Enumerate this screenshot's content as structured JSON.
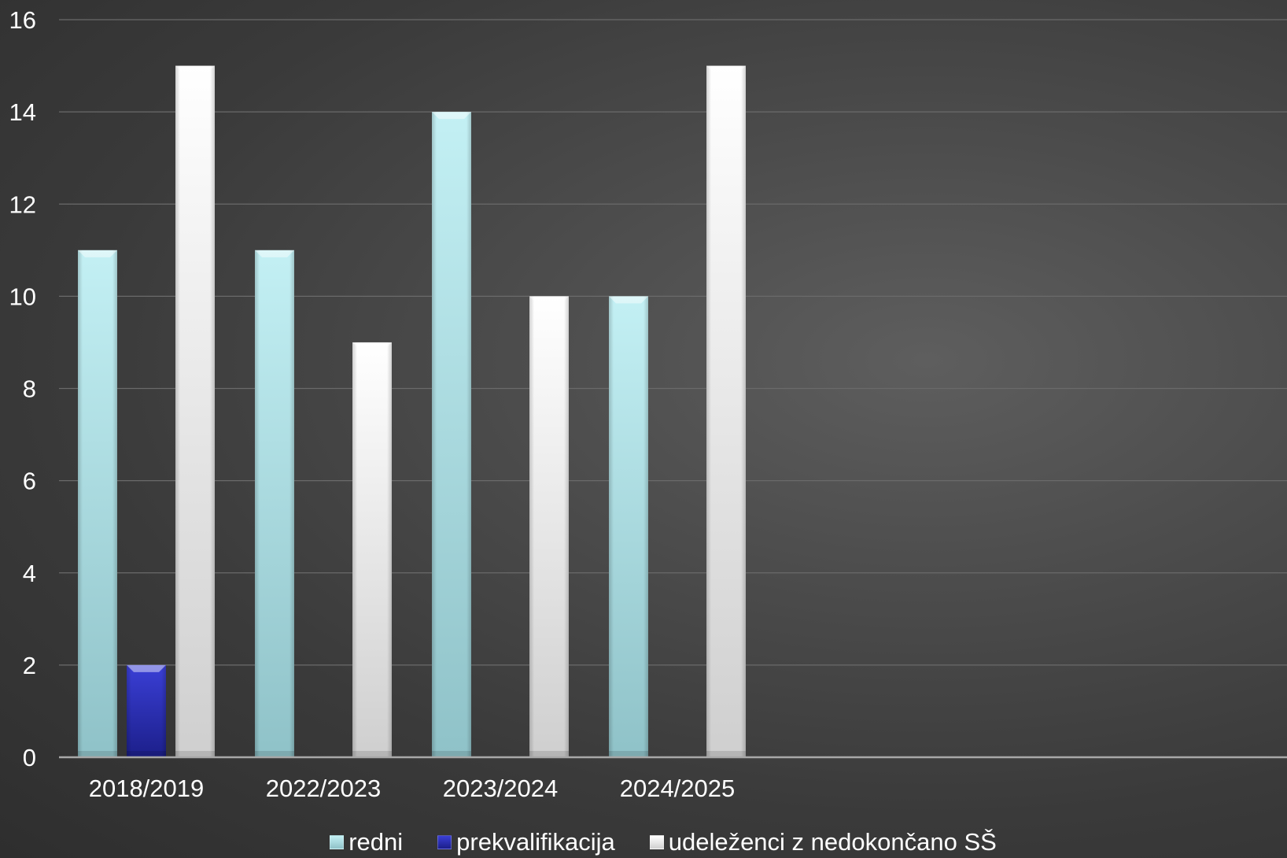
{
  "chart_data": {
    "type": "bar",
    "categories": [
      "2018/2019",
      "2022/2023",
      "2023/2024",
      "2024/2025"
    ],
    "series": [
      {
        "name": "redni",
        "values": [
          11,
          11,
          14,
          10
        ],
        "color": "#aee4ea"
      },
      {
        "name": "prekvalifikacija",
        "values": [
          2,
          null,
          null,
          null
        ],
        "color": "#2a2fb8"
      },
      {
        "name": "udeleženci z nedokončano SŠ",
        "values": [
          15,
          9,
          10,
          15
        ],
        "color": "#f2f2f2"
      }
    ],
    "ylim": [
      0,
      16
    ],
    "yticks": [
      0,
      2,
      4,
      6,
      8,
      10,
      12,
      14,
      16
    ],
    "category_slots": 7,
    "grid": true,
    "legend": "bottom",
    "title": "",
    "xlabel": "",
    "ylabel": ""
  }
}
